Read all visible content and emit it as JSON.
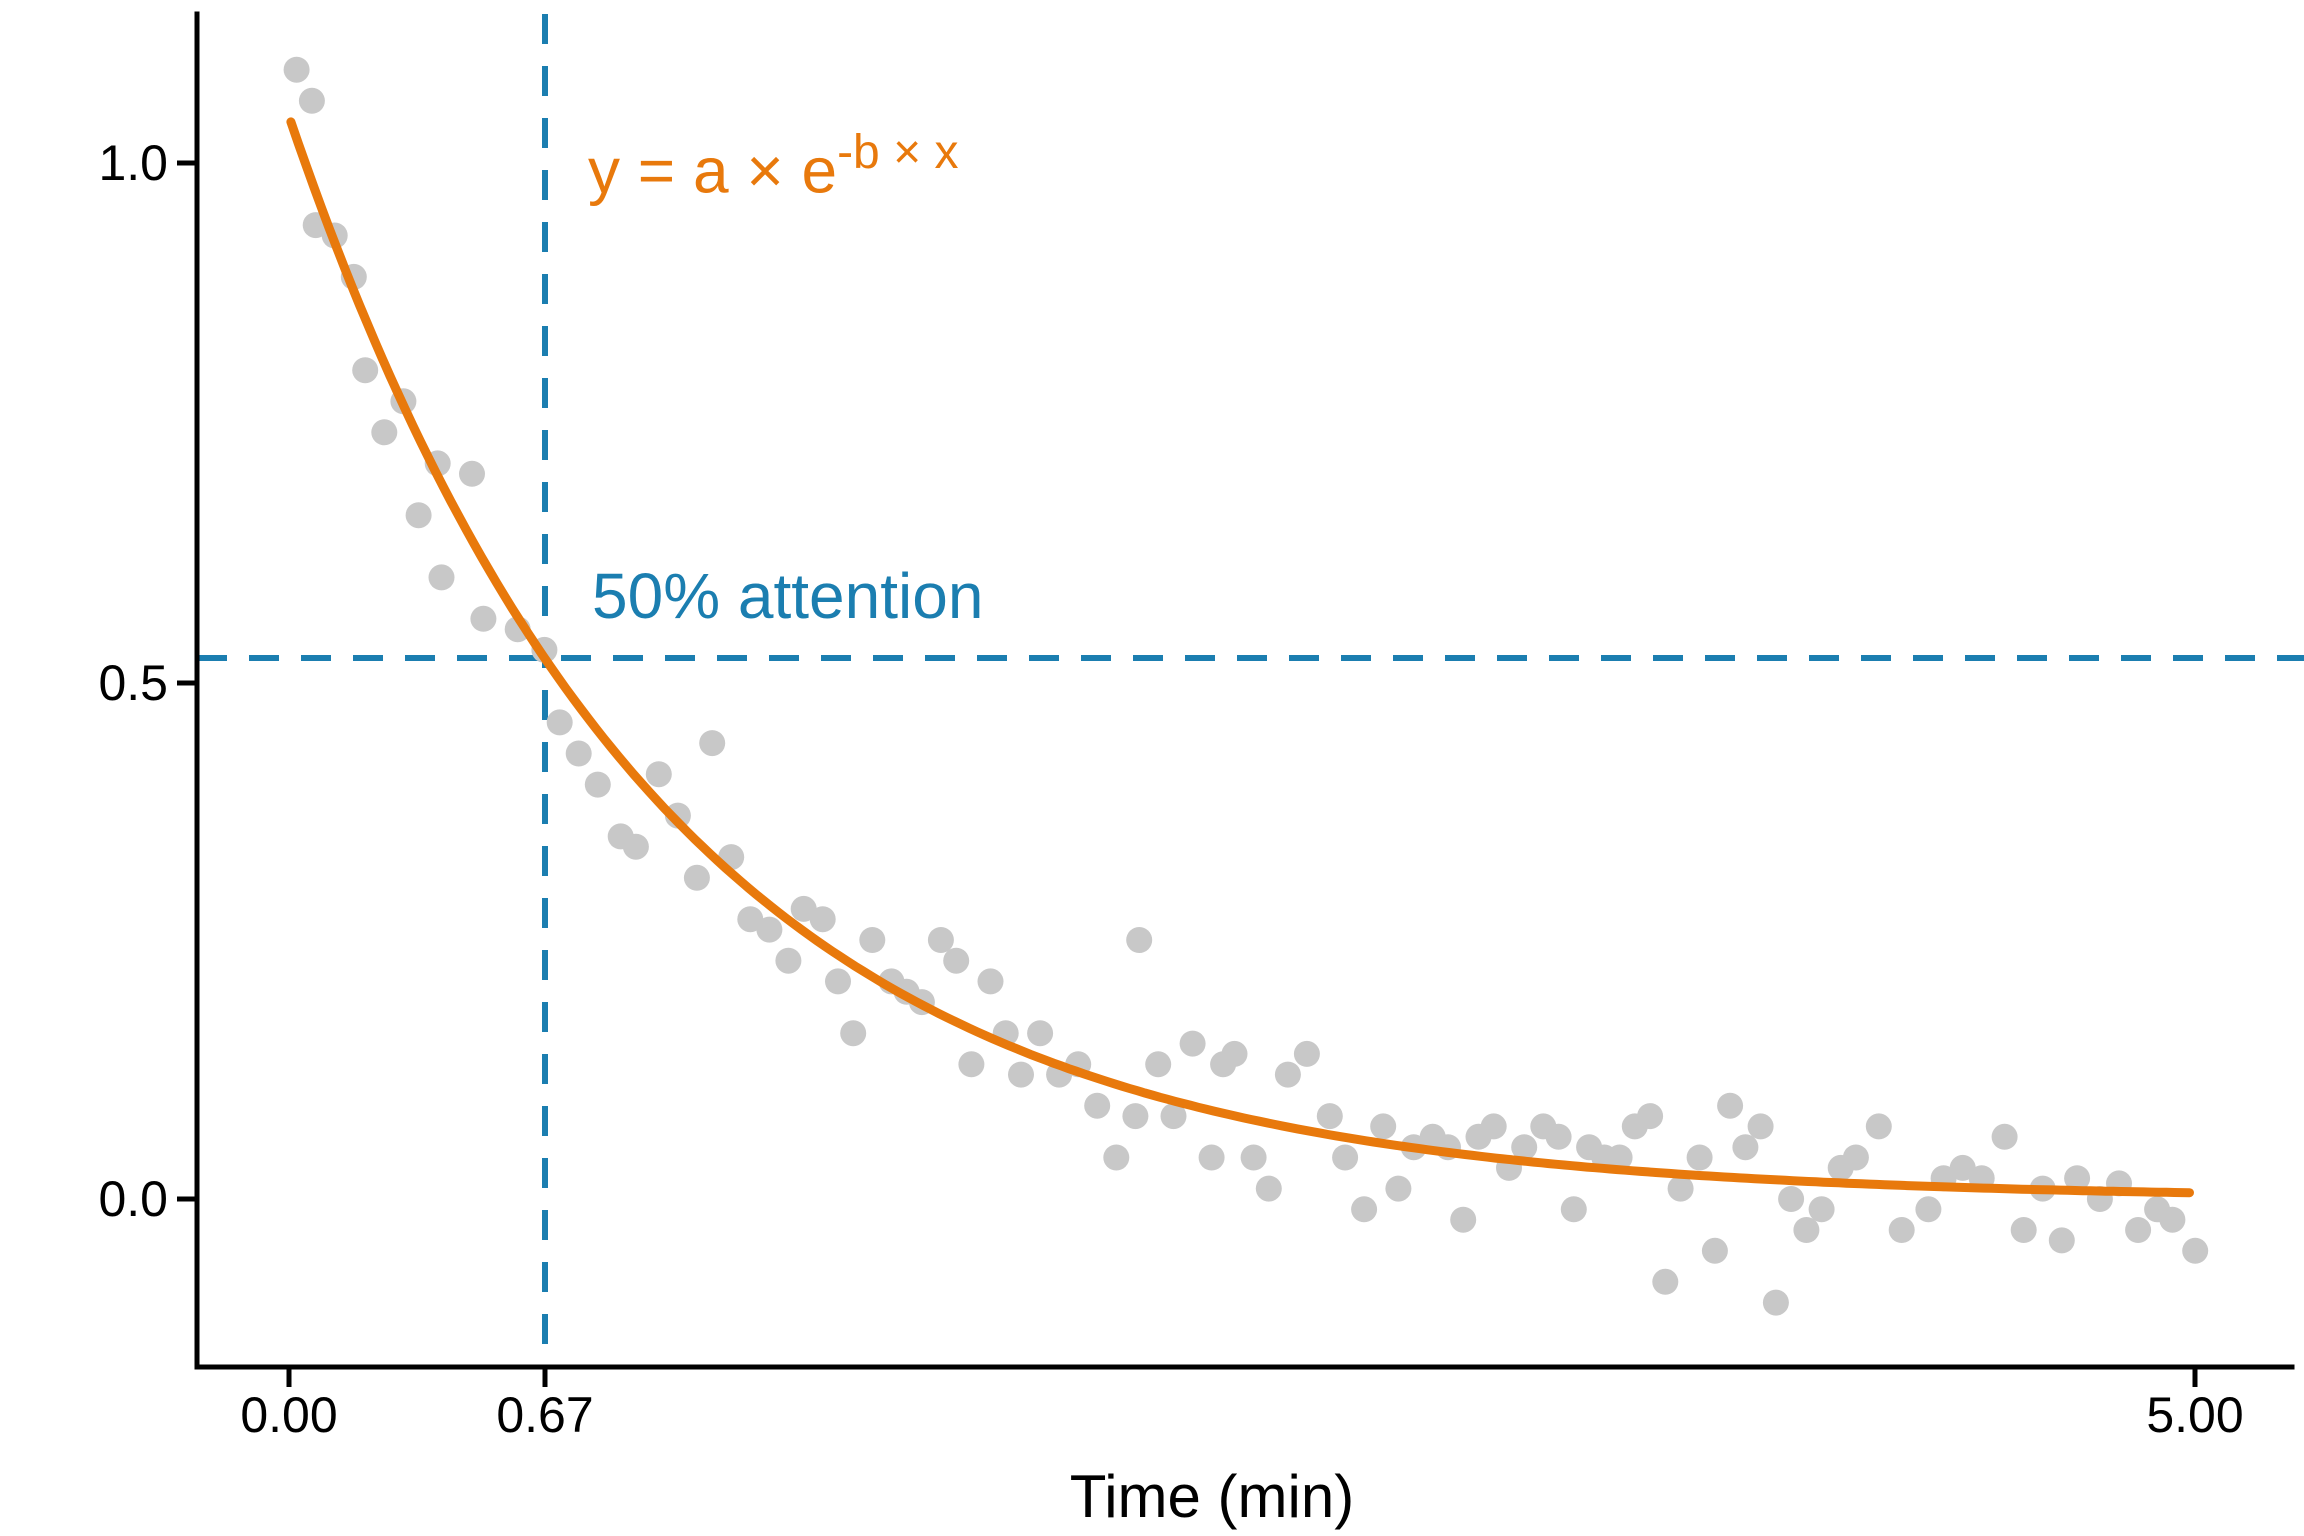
{
  "chart_data": {
    "type": "scatter",
    "title": "",
    "xlabel": "Time (min)",
    "ylabel": "",
    "xlim": [
      -0.2413,
      5.2538
    ],
    "ylim": [
      -0.1622,
      1.1438
    ],
    "grid": false,
    "legend": "none",
    "x_ticks": [
      {
        "value": 0.0,
        "label": "0.00"
      },
      {
        "value": 0.67,
        "label": "0.67"
      },
      {
        "value": 5.0,
        "label": "5.00"
      }
    ],
    "y_ticks": [
      {
        "value": 0.0,
        "label": "0.0"
      },
      {
        "value": 0.5,
        "label": "0.5"
      },
      {
        "value": 1.0,
        "label": "1.0"
      }
    ],
    "annotations": {
      "formula_base": "y = a × e",
      "formula_superscript": "-b × x",
      "half_attention_label": "50% attention",
      "half_life_x": 0.67,
      "half_attention_y": 0.52
    },
    "fit_curve": {
      "type": "exponential_decay",
      "a": 1.045,
      "b": 1.035,
      "x_start": 0.005,
      "x_end": 5.0
    },
    "points": [
      [
        0.02,
        1.09
      ],
      [
        0.06,
        1.06
      ],
      [
        0.07,
        0.94
      ],
      [
        0.12,
        0.93
      ],
      [
        0.17,
        0.89
      ],
      [
        0.2,
        0.8
      ],
      [
        0.25,
        0.74
      ],
      [
        0.3,
        0.77
      ],
      [
        0.34,
        0.66
      ],
      [
        0.39,
        0.71
      ],
      [
        0.4,
        0.6
      ],
      [
        0.48,
        0.7
      ],
      [
        0.51,
        0.56
      ],
      [
        0.6,
        0.55
      ],
      [
        0.67,
        0.53
      ],
      [
        0.71,
        0.46
      ],
      [
        0.76,
        0.43
      ],
      [
        0.81,
        0.4
      ],
      [
        0.87,
        0.35
      ],
      [
        0.91,
        0.34
      ],
      [
        0.97,
        0.41
      ],
      [
        1.02,
        0.37
      ],
      [
        1.07,
        0.31
      ],
      [
        1.11,
        0.44
      ],
      [
        1.16,
        0.33
      ],
      [
        1.21,
        0.27
      ],
      [
        1.26,
        0.26
      ],
      [
        1.31,
        0.23
      ],
      [
        1.35,
        0.28
      ],
      [
        1.4,
        0.27
      ],
      [
        1.44,
        0.21
      ],
      [
        1.48,
        0.16
      ],
      [
        1.53,
        0.25
      ],
      [
        1.58,
        0.21
      ],
      [
        1.62,
        0.2
      ],
      [
        1.66,
        0.19
      ],
      [
        1.71,
        0.25
      ],
      [
        1.75,
        0.23
      ],
      [
        1.79,
        0.13
      ],
      [
        1.84,
        0.21
      ],
      [
        1.88,
        0.16
      ],
      [
        1.92,
        0.12
      ],
      [
        1.97,
        0.16
      ],
      [
        2.02,
        0.12
      ],
      [
        2.07,
        0.13
      ],
      [
        2.12,
        0.09
      ],
      [
        2.17,
        0.04
      ],
      [
        2.22,
        0.08
      ],
      [
        2.23,
        0.25
      ],
      [
        2.28,
        0.13
      ],
      [
        2.32,
        0.08
      ],
      [
        2.37,
        0.15
      ],
      [
        2.42,
        0.04
      ],
      [
        2.45,
        0.13
      ],
      [
        2.48,
        0.14
      ],
      [
        2.53,
        0.04
      ],
      [
        2.57,
        0.01
      ],
      [
        2.62,
        0.12
      ],
      [
        2.67,
        0.14
      ],
      [
        2.73,
        0.08
      ],
      [
        2.77,
        0.04
      ],
      [
        2.82,
        -0.01
      ],
      [
        2.87,
        0.07
      ],
      [
        2.91,
        0.01
      ],
      [
        2.95,
        0.05
      ],
      [
        3.0,
        0.06
      ],
      [
        3.04,
        0.05
      ],
      [
        3.08,
        -0.02
      ],
      [
        3.12,
        0.06
      ],
      [
        3.16,
        0.07
      ],
      [
        3.2,
        0.03
      ],
      [
        3.24,
        0.05
      ],
      [
        3.29,
        0.07
      ],
      [
        3.33,
        0.06
      ],
      [
        3.37,
        -0.01
      ],
      [
        3.41,
        0.05
      ],
      [
        3.45,
        0.04
      ],
      [
        3.49,
        0.04
      ],
      [
        3.53,
        0.07
      ],
      [
        3.57,
        0.08
      ],
      [
        3.61,
        -0.08
      ],
      [
        3.65,
        0.01
      ],
      [
        3.7,
        0.04
      ],
      [
        3.74,
        -0.05
      ],
      [
        3.78,
        0.09
      ],
      [
        3.82,
        0.05
      ],
      [
        3.86,
        0.07
      ],
      [
        3.9,
        -0.1
      ],
      [
        3.94,
        0.0
      ],
      [
        3.98,
        -0.03
      ],
      [
        4.02,
        -0.01
      ],
      [
        4.07,
        0.03
      ],
      [
        4.11,
        0.04
      ],
      [
        4.17,
        0.07
      ],
      [
        4.23,
        -0.03
      ],
      [
        4.3,
        -0.01
      ],
      [
        4.34,
        0.02
      ],
      [
        4.39,
        0.03
      ],
      [
        4.44,
        0.02
      ],
      [
        4.5,
        0.06
      ],
      [
        4.55,
        -0.03
      ],
      [
        4.6,
        0.01
      ],
      [
        4.65,
        -0.04
      ],
      [
        4.69,
        0.02
      ],
      [
        4.75,
        0.0
      ],
      [
        4.8,
        0.015
      ],
      [
        4.85,
        -0.03
      ],
      [
        4.9,
        -0.01
      ],
      [
        4.94,
        -0.02
      ],
      [
        5.0,
        -0.05
      ]
    ]
  },
  "colors": {
    "curve_orange": "#E8790C",
    "annotation_blue": "#1B7EB0",
    "point_gray": "#C8C8C8",
    "axis_black": "#000000"
  }
}
